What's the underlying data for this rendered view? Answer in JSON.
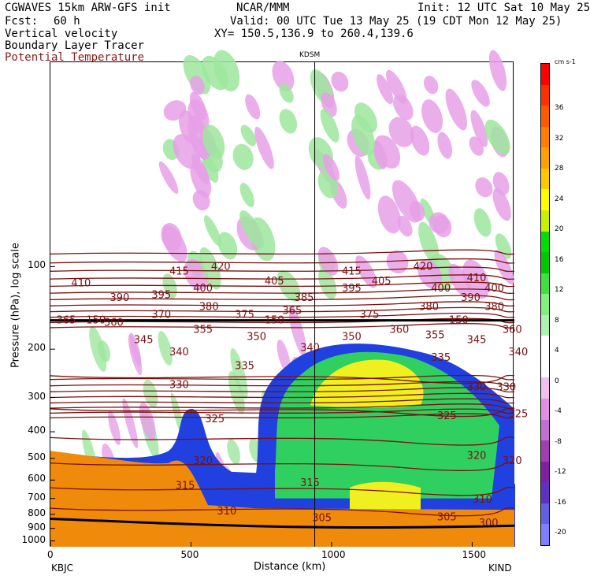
{
  "header": {
    "model": "CGWAVES 15km ARW-GFS init",
    "org": "NCAR/MMM",
    "init": "Init: 12 UTC Sat 10 May 25",
    "fcst_label": "Fcst:",
    "fcst_value": "60 h",
    "valid": "Valid: 00 UTC Tue 13 May 25 (19 CDT Mon 12 May 25)",
    "field1": "Vertical velocity",
    "field2": "Boundary Layer Tracer",
    "field3": "Potential Temperature",
    "xy": "XY= 150.5,136.9 to 260.4,139.6"
  },
  "colors": {
    "theta_contour": "#7a1010",
    "terrain": "#f08a0a",
    "tropopause": "#000000",
    "bl_tracer_edge": "#2040e0",
    "bl_tracer_mid": "#30d060",
    "bl_tracer_core": "#f0f020",
    "updraft": "#9ee69e",
    "downdraft": "#e6a0e6"
  },
  "chart_data": {
    "type": "heatmap",
    "title": "",
    "station_mid": "KDSM",
    "station_left": "KBJC",
    "station_right": "KIND",
    "xlabel": "Distance (km)",
    "ylabel": "Pressure (hPa), log scale",
    "x_ticks": [
      0,
      500,
      1000,
      1500
    ],
    "x_tick_labels": [
      "0",
      "500",
      "1000",
      "1500"
    ],
    "xlim": [
      0,
      1650
    ],
    "y_ticks": [
      100,
      200,
      300,
      400,
      500,
      600,
      700,
      800,
      900,
      1000
    ],
    "y_tick_labels": [
      "100",
      "200",
      "300",
      "400",
      "500",
      "600",
      "700",
      "800",
      "900",
      "1000"
    ],
    "y_scale": "log",
    "colorbar": {
      "units": "cm s-1",
      "ticks": [
        36,
        32,
        28,
        24,
        20,
        16,
        12,
        8,
        4,
        0,
        -4,
        -8,
        -12,
        -16,
        -20
      ],
      "tick_labels": [
        "36",
        "32",
        "28",
        "24",
        "20",
        "16",
        "12",
        "8",
        "4",
        "0",
        "-4",
        "-8",
        "-12",
        "-16",
        "-20"
      ],
      "colors": [
        "#ff0000",
        "#ff3000",
        "#ff5a00",
        "#ff8000",
        "#ffa000",
        "#ffc800",
        "#ffff00",
        "#c8f000",
        "#00e000",
        "#00c800",
        "#40e040",
        "#80f080",
        "#b0f0b0",
        "#ffffff",
        "#ffffff",
        "#f0c0f0",
        "#e090e0",
        "#c070d0",
        "#a040b0",
        "#8020a0",
        "#6030c0",
        "#6060e0",
        "#8080ff"
      ]
    },
    "theta_labels": [
      {
        "x": 35,
        "p": 115,
        "label": "410"
      },
      {
        "x": 200,
        "p": 104,
        "label": "415"
      },
      {
        "x": 270,
        "p": 100,
        "label": "420"
      },
      {
        "x": 100,
        "p": 130,
        "label": "390"
      },
      {
        "x": 170,
        "p": 127,
        "label": "395"
      },
      {
        "x": 240,
        "p": 120,
        "label": "400"
      },
      {
        "x": 360,
        "p": 113,
        "label": "405"
      },
      {
        "x": 490,
        "p": 104,
        "label": "415"
      },
      {
        "x": 410,
        "p": 130,
        "label": "385"
      },
      {
        "x": 490,
        "p": 120,
        "label": "395"
      },
      {
        "x": 540,
        "p": 113,
        "label": "405"
      },
      {
        "x": 610,
        "p": 100,
        "label": "420"
      },
      {
        "x": 640,
        "p": 120,
        "label": "400"
      },
      {
        "x": 700,
        "p": 110,
        "label": "410"
      },
      {
        "x": 730,
        "p": 120,
        "label": "400"
      },
      {
        "x": 690,
        "p": 130,
        "label": "390"
      },
      {
        "x": 730,
        "p": 140,
        "label": "380"
      },
      {
        "x": 620,
        "p": 140,
        "label": "380"
      },
      {
        "x": 250,
        "p": 140,
        "label": "380"
      },
      {
        "x": 170,
        "p": 150,
        "label": "370"
      },
      {
        "x": 310,
        "p": 150,
        "label": "375"
      },
      {
        "x": 390,
        "p": 145,
        "label": "365"
      },
      {
        "x": 520,
        "p": 150,
        "label": "375"
      },
      {
        "x": 90,
        "p": 160,
        "label": "360"
      },
      {
        "x": 10,
        "p": 157,
        "label": "365"
      },
      {
        "x": 60,
        "p": 157,
        "label": "150"
      },
      {
        "x": 360,
        "p": 157,
        "label": "150"
      },
      {
        "x": 670,
        "p": 157,
        "label": "150"
      },
      {
        "x": 240,
        "p": 170,
        "label": "355"
      },
      {
        "x": 330,
        "p": 180,
        "label": "350"
      },
      {
        "x": 570,
        "p": 170,
        "label": "360"
      },
      {
        "x": 630,
        "p": 178,
        "label": "355"
      },
      {
        "x": 760,
        "p": 170,
        "label": "360"
      },
      {
        "x": 140,
        "p": 185,
        "label": "345"
      },
      {
        "x": 490,
        "p": 180,
        "label": "350"
      },
      {
        "x": 700,
        "p": 185,
        "label": "345"
      },
      {
        "x": 200,
        "p": 205,
        "label": "340"
      },
      {
        "x": 420,
        "p": 198,
        "label": "340"
      },
      {
        "x": 770,
        "p": 205,
        "label": "340"
      },
      {
        "x": 310,
        "p": 230,
        "label": "335"
      },
      {
        "x": 640,
        "p": 215,
        "label": "335"
      },
      {
        "x": 200,
        "p": 270,
        "label": "330"
      },
      {
        "x": 700,
        "p": 275,
        "label": "330"
      },
      {
        "x": 750,
        "p": 275,
        "label": "330"
      },
      {
        "x": 260,
        "p": 360,
        "label": "325"
      },
      {
        "x": 650,
        "p": 350,
        "label": "325"
      },
      {
        "x": 770,
        "p": 345,
        "label": "325"
      },
      {
        "x": 240,
        "p": 510,
        "label": "320"
      },
      {
        "x": 700,
        "p": 490,
        "label": "320"
      },
      {
        "x": 760,
        "p": 510,
        "label": "320"
      },
      {
        "x": 210,
        "p": 630,
        "label": "315"
      },
      {
        "x": 420,
        "p": 615,
        "label": "315"
      },
      {
        "x": 280,
        "p": 780,
        "label": "310"
      },
      {
        "x": 710,
        "p": 705,
        "label": "310"
      },
      {
        "x": 440,
        "p": 825,
        "label": "305"
      },
      {
        "x": 650,
        "p": 820,
        "label": "305"
      },
      {
        "x": 720,
        "p": 860,
        "label": "300"
      }
    ]
  }
}
